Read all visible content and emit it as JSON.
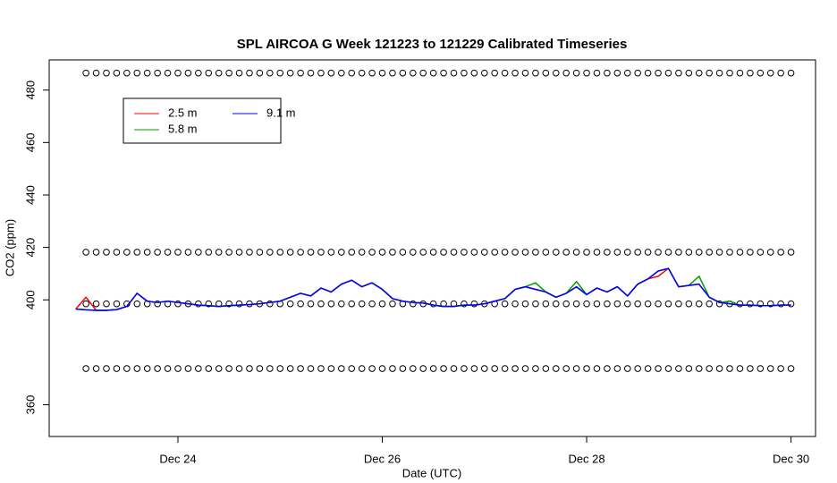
{
  "chart_data": {
    "type": "line",
    "title": "SPL AIRCOA G  Week 121223 to 121229  Calibrated Timeseries",
    "xlabel": "Date (UTC)",
    "ylabel": "CO2 (ppm)",
    "xlim": [
      22.74,
      30.24
    ],
    "ylim": [
      347.9,
      491.5
    ],
    "xticks": [
      {
        "value": 24,
        "label": "Dec 24"
      },
      {
        "value": 26,
        "label": "Dec 26"
      },
      {
        "value": 28,
        "label": "Dec 28"
      },
      {
        "value": 30,
        "label": "Dec 30"
      }
    ],
    "yticks": [
      360,
      400,
      420,
      440,
      460,
      480
    ],
    "legend": "top-left",
    "x": [
      23.0,
      23.1,
      23.2,
      23.3,
      23.4,
      23.5,
      23.6,
      23.7,
      23.8,
      23.9,
      24.0,
      24.1,
      24.2,
      24.3,
      24.4,
      24.5,
      24.6,
      24.7,
      24.8,
      24.9,
      25.0,
      25.1,
      25.2,
      25.3,
      25.4,
      25.5,
      25.6,
      25.7,
      25.8,
      25.9,
      26.0,
      26.1,
      26.2,
      26.3,
      26.4,
      26.5,
      26.6,
      26.7,
      26.8,
      26.9,
      27.0,
      27.1,
      27.2,
      27.3,
      27.4,
      27.5,
      27.6,
      27.7,
      27.8,
      27.9,
      28.0,
      28.1,
      28.2,
      28.3,
      28.4,
      28.5,
      28.6,
      28.7,
      28.8,
      28.9,
      29.0,
      29.1,
      29.2,
      29.3,
      29.4,
      29.5,
      29.6,
      29.7,
      29.8,
      29.9,
      30.0
    ],
    "series": [
      {
        "name": "2.5 m",
        "color": "#ff0000",
        "values": [
          396.5,
          401.0,
          396.0,
          396.0,
          396.3,
          397.5,
          402.5,
          399.5,
          399.0,
          399.5,
          399.0,
          398.5,
          398.0,
          397.8,
          397.5,
          397.8,
          398.0,
          398.2,
          398.5,
          399.0,
          399.5,
          401.0,
          402.5,
          401.5,
          404.5,
          403.0,
          406.0,
          407.5,
          405.0,
          406.5,
          404.0,
          400.5,
          399.5,
          399.0,
          398.8,
          398.0,
          397.5,
          397.5,
          398.0,
          398.0,
          398.5,
          399.5,
          400.5,
          404.0,
          405.0,
          404.0,
          403.0,
          401.0,
          402.5,
          405.0,
          402.0,
          404.5,
          403.0,
          405.0,
          401.5,
          406.0,
          408.0,
          409.0,
          412.0,
          405.0,
          405.5,
          406.0,
          401.0,
          399.0,
          398.5,
          398.0,
          398.0,
          397.8,
          397.8,
          398.0,
          398.0
        ]
      },
      {
        "name": "5.8 m",
        "color": "#00a000",
        "values": [
          396.5,
          396.2,
          396.0,
          396.0,
          396.3,
          397.5,
          402.5,
          399.5,
          399.0,
          399.5,
          399.0,
          398.5,
          398.0,
          397.8,
          397.5,
          397.8,
          398.0,
          398.2,
          398.5,
          399.0,
          399.5,
          401.0,
          402.5,
          401.5,
          404.5,
          403.0,
          406.0,
          407.5,
          405.0,
          406.5,
          404.0,
          400.5,
          399.5,
          399.0,
          398.8,
          398.0,
          397.5,
          397.5,
          398.0,
          398.0,
          398.5,
          399.5,
          400.5,
          404.0,
          405.0,
          406.5,
          403.0,
          401.0,
          402.5,
          407.0,
          402.0,
          404.5,
          403.0,
          405.0,
          401.5,
          406.0,
          408.0,
          411.0,
          412.0,
          405.0,
          405.5,
          409.0,
          401.0,
          399.0,
          399.5,
          398.0,
          398.0,
          397.8,
          397.8,
          398.0,
          398.0
        ]
      },
      {
        "name": "9.1 m",
        "color": "#0000ff",
        "values": [
          396.5,
          396.2,
          396.0,
          396.0,
          396.3,
          397.5,
          402.5,
          399.5,
          399.0,
          399.5,
          399.0,
          398.5,
          398.0,
          397.8,
          397.5,
          397.8,
          398.0,
          398.2,
          398.5,
          399.0,
          399.5,
          401.0,
          402.5,
          401.5,
          404.5,
          403.0,
          406.0,
          407.5,
          405.0,
          406.5,
          404.0,
          400.5,
          399.5,
          399.0,
          398.8,
          398.0,
          397.5,
          397.5,
          398.0,
          398.0,
          398.5,
          399.5,
          400.5,
          404.0,
          405.0,
          404.0,
          403.0,
          401.0,
          402.5,
          405.0,
          402.0,
          404.5,
          403.0,
          405.0,
          401.5,
          406.0,
          408.0,
          411.0,
          412.0,
          405.0,
          405.5,
          406.0,
          401.0,
          399.0,
          398.5,
          398.0,
          398.0,
          397.8,
          397.8,
          398.0,
          398.0
        ]
      }
    ],
    "standards": {
      "levels": [
        486.5,
        418.2,
        398.5,
        373.8
      ],
      "x": [
        23.1,
        23.2,
        23.3,
        23.4,
        23.5,
        23.6,
        23.7,
        23.8,
        23.9,
        24.0,
        24.1,
        24.2,
        24.3,
        24.4,
        24.5,
        24.6,
        24.7,
        24.8,
        24.9,
        25.0,
        25.1,
        25.2,
        25.3,
        25.4,
        25.5,
        25.6,
        25.7,
        25.8,
        25.9,
        26.0,
        26.1,
        26.2,
        26.3,
        26.4,
        26.5,
        26.6,
        26.7,
        26.8,
        26.9,
        27.0,
        27.1,
        27.2,
        27.3,
        27.4,
        27.5,
        27.6,
        27.7,
        27.8,
        27.9,
        28.0,
        28.1,
        28.2,
        28.3,
        28.4,
        28.5,
        28.6,
        28.7,
        28.8,
        28.9,
        29.0,
        29.1,
        29.2,
        29.3,
        29.4,
        29.5,
        29.6,
        29.7,
        29.8,
        29.9,
        30.0
      ]
    }
  }
}
